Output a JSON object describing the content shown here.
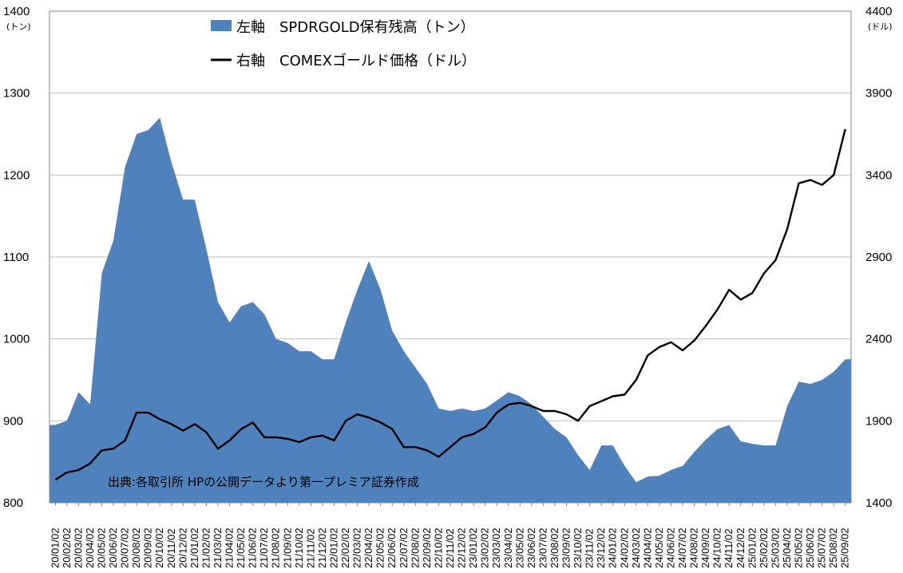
{
  "chart_data": {
    "type": "area",
    "legend": {
      "left_series_label": "左軸　SPDRGOLD保有残高（トン）",
      "right_series_label": "右軸　COMEXゴールド価格（ドル）"
    },
    "left_axis": {
      "unit": "(トン)",
      "min": 800,
      "max": 1400,
      "ticks": [
        800,
        900,
        1000,
        1100,
        1200,
        1300,
        1400
      ]
    },
    "right_axis": {
      "unit": "(ドル)",
      "min": 1400,
      "max": 4400,
      "ticks": [
        1400,
        1900,
        2400,
        2900,
        3400,
        3900,
        4400
      ]
    },
    "source_note": "出典:各取引所 HPの公開データより第一プレミア証券作成",
    "grid": true,
    "colors": {
      "area": "#4f81bd",
      "line": "#000000",
      "grid": "#bfbfbf"
    },
    "x_labels": [
      "20/01/02",
      "20/02/02",
      "20/03/02",
      "20/04/02",
      "20/05/02",
      "20/06/02",
      "20/07/02",
      "20/08/02",
      "20/09/02",
      "20/10/02",
      "20/11/02",
      "20/12/02",
      "21/01/02",
      "21/02/02",
      "21/03/02",
      "21/04/02",
      "21/05/02",
      "21/06/02",
      "21/07/02",
      "21/08/02",
      "21/09/02",
      "21/10/02",
      "21/11/02",
      "21/12/02",
      "22/01/02",
      "22/02/02",
      "22/03/02",
      "22/04/02",
      "22/05/02",
      "22/06/02",
      "22/07/02",
      "22/08/02",
      "22/09/02",
      "22/10/02",
      "22/11/02",
      "22/12/02",
      "23/01/02",
      "23/02/02",
      "23/03/02",
      "23/04/02",
      "23/05/02",
      "23/06/02",
      "23/07/02",
      "23/08/02",
      "23/09/02",
      "23/10/02",
      "23/11/02",
      "23/12/02",
      "24/01/02",
      "24/02/02",
      "24/03/02",
      "24/04/02",
      "24/05/02",
      "24/06/02",
      "24/07/02",
      "24/08/02",
      "24/09/02",
      "24/10/02",
      "24/11/02",
      "24/12/02",
      "25/01/02",
      "25/02/02",
      "25/03/02",
      "25/04/02",
      "25/05/02",
      "25/06/02",
      "25/07/02",
      "25/08/02",
      "25/09/02"
    ],
    "series": [
      {
        "name": "左軸　SPDRGOLD保有残高（トン）",
        "axis": "left",
        "values": [
          895,
          900,
          935,
          920,
          1080,
          1120,
          1210,
          1250,
          1255,
          1270,
          1215,
          1170,
          1170,
          1110,
          1045,
          1020,
          1040,
          1045,
          1030,
          1000,
          995,
          985,
          985,
          975,
          975,
          1020,
          1060,
          1095,
          1060,
          1010,
          985,
          965,
          945,
          915,
          912,
          915,
          912,
          915,
          925,
          935,
          930,
          920,
          905,
          890,
          880,
          858,
          840,
          870,
          870,
          845,
          825,
          832,
          833,
          840,
          845,
          862,
          877,
          890,
          895,
          875,
          872,
          870,
          870,
          918,
          948,
          945,
          950,
          960,
          975
        ]
      },
      {
        "name": "右軸　COMEXゴールド価格（ドル）",
        "axis": "right",
        "values": [
          1540,
          1585,
          1600,
          1640,
          1720,
          1730,
          1780,
          1950,
          1950,
          1910,
          1880,
          1840,
          1880,
          1830,
          1730,
          1780,
          1850,
          1890,
          1800,
          1800,
          1790,
          1770,
          1800,
          1810,
          1780,
          1900,
          1940,
          1920,
          1890,
          1850,
          1740,
          1740,
          1720,
          1680,
          1740,
          1800,
          1820,
          1860,
          1950,
          2000,
          2010,
          1990,
          1960,
          1960,
          1940,
          1900,
          1990,
          2020,
          2050,
          2060,
          2150,
          2300,
          2350,
          2380,
          2330,
          2390,
          2480,
          2580,
          2700,
          2640,
          2680,
          2800,
          2880,
          3070,
          3350,
          3370,
          3340,
          3400,
          3680
        ]
      }
    ]
  }
}
